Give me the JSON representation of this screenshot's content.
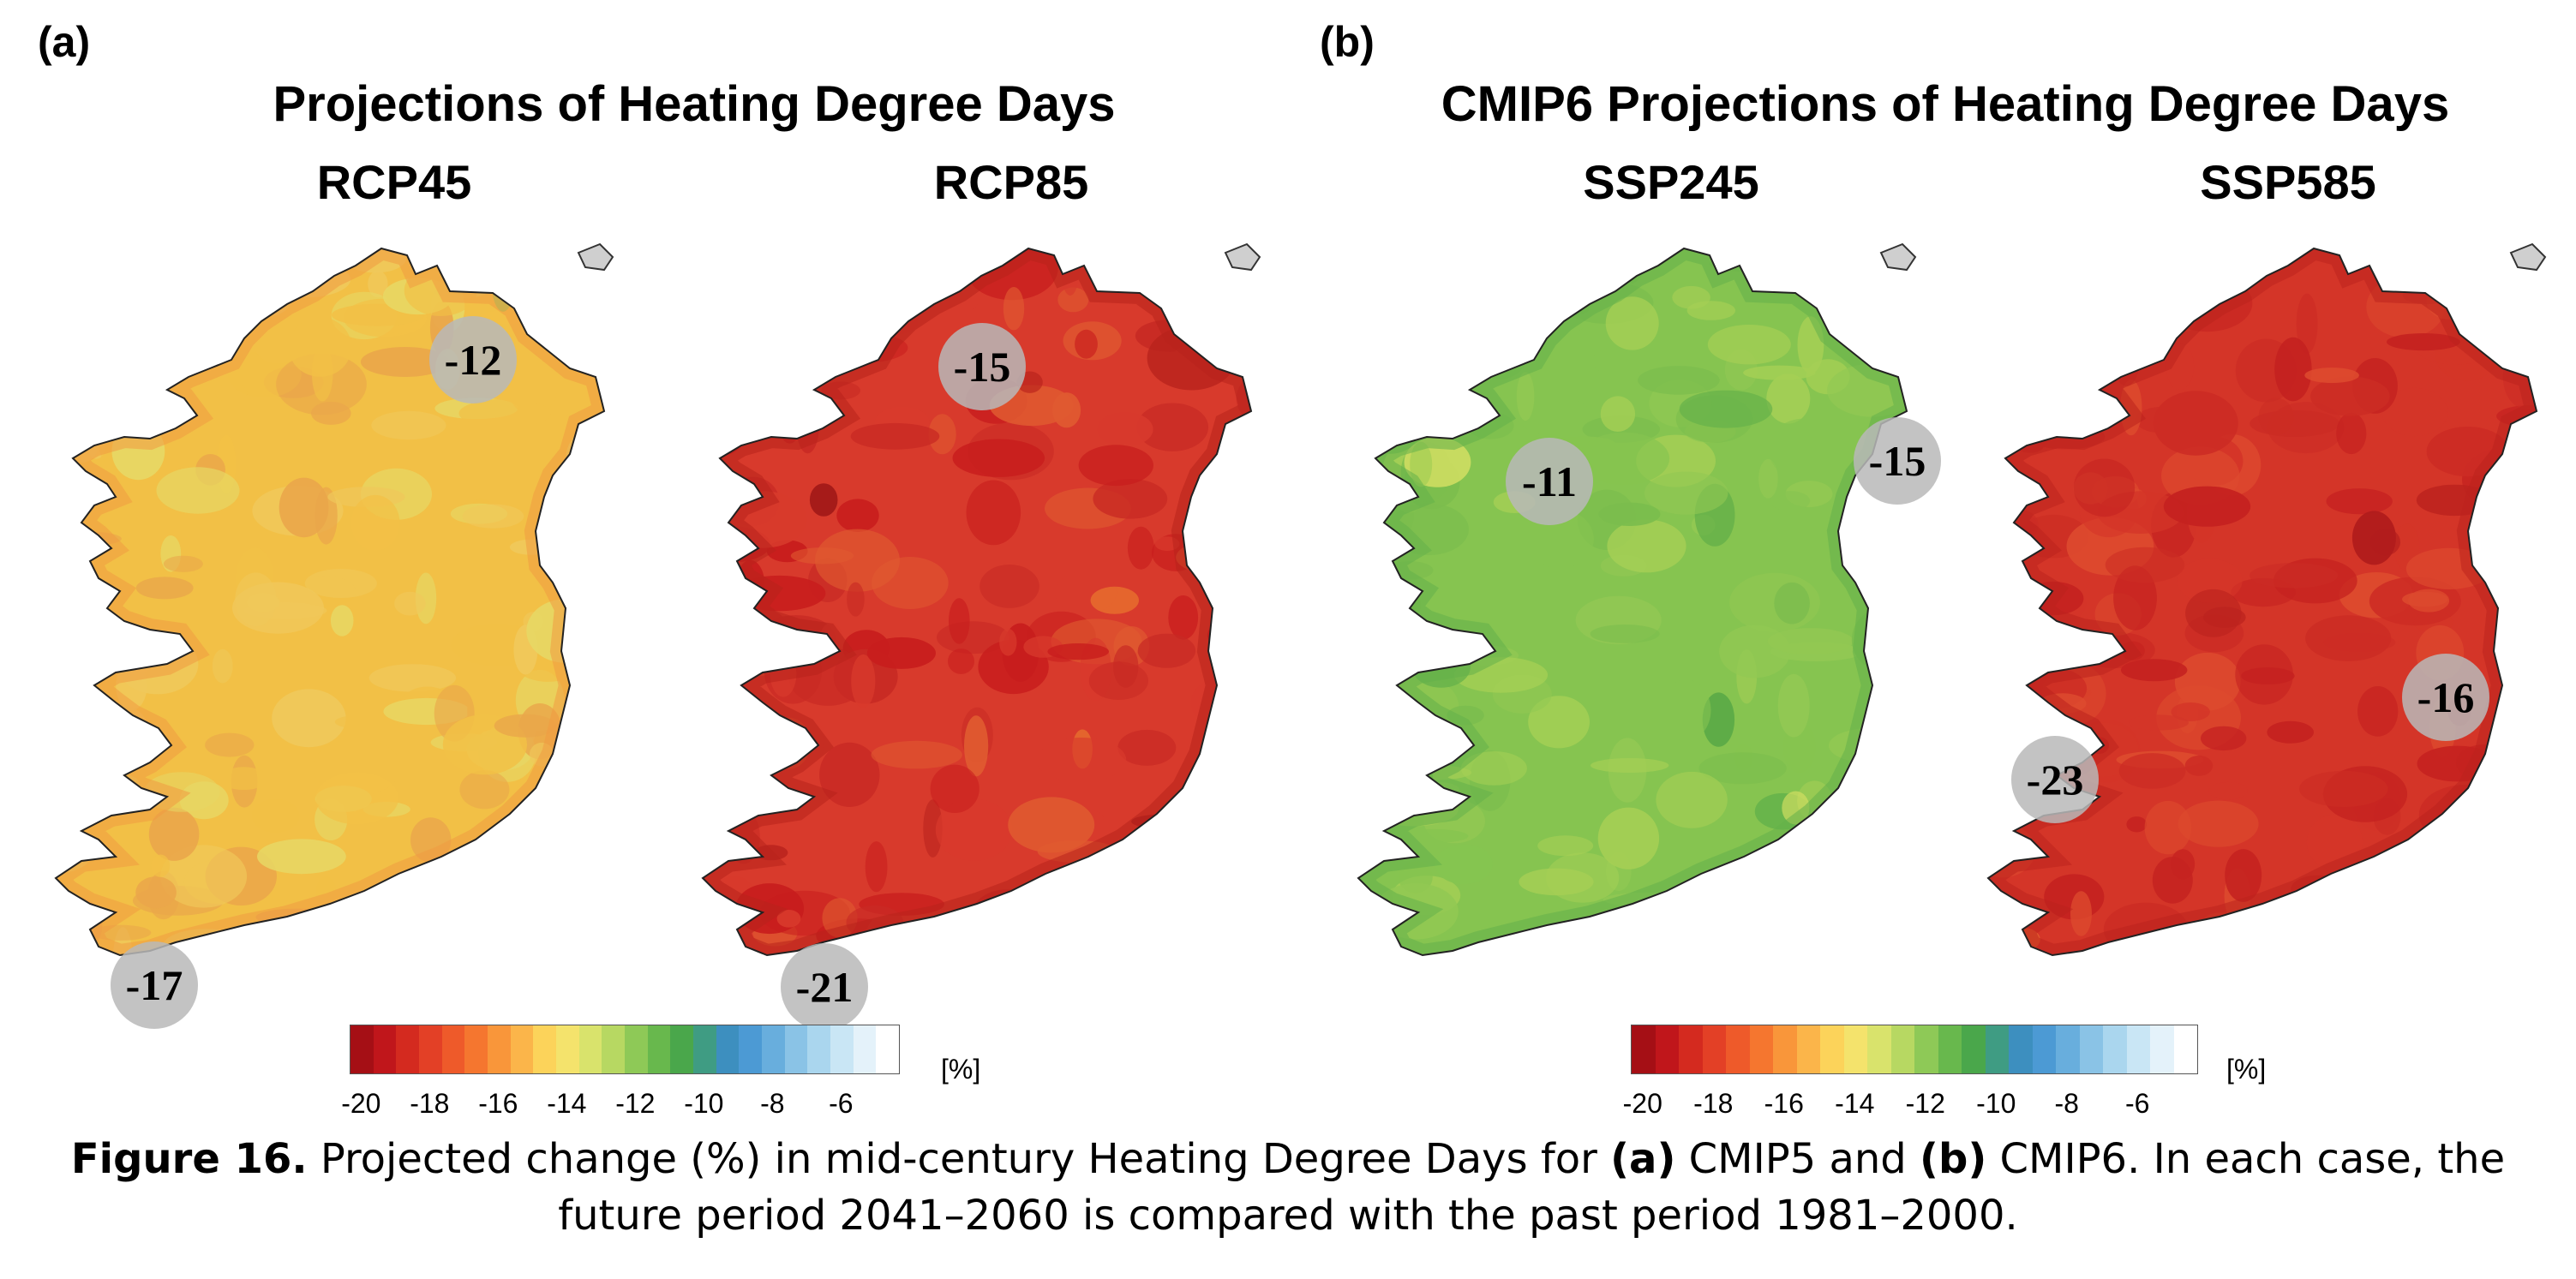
{
  "panels": {
    "a": {
      "label": "(a)",
      "title": "Projections of Heating Degree Days",
      "maps": [
        {
          "scenario": "RCP45",
          "palette": [
            "#f2c046",
            "#f0c85a",
            "#eaa64a",
            "#e7d764"
          ],
          "accent": [
            "#9ac75a",
            "#b5cf5e",
            "#f09a42"
          ],
          "callouts": [
            "-12",
            "-17"
          ]
        },
        {
          "scenario": "RCP85",
          "palette": [
            "#d83a2c",
            "#c82a24",
            "#e05a30",
            "#c81d1d"
          ],
          "accent": [
            "#a01818",
            "#e9742e",
            "#b8221c"
          ],
          "callouts": [
            "-15",
            "-21"
          ]
        }
      ],
      "colorbar": {
        "ticks": [
          "-20",
          "-18",
          "-16",
          "-14",
          "-12",
          "-10",
          "-8",
          "-6"
        ],
        "unit": "[%]"
      }
    },
    "b": {
      "label": "(b)",
      "title": "CMIP6 Projections of Heating Degree Days",
      "maps": [
        {
          "scenario": "SSP245",
          "palette": [
            "#86c450",
            "#92c853",
            "#7bbd4d",
            "#a5cf55"
          ],
          "accent": [
            "#5aaa46",
            "#d4df63",
            "#64b14a"
          ],
          "callouts": [
            "-11",
            "-15"
          ]
        },
        {
          "scenario": "SSP585",
          "palette": [
            "#d43528",
            "#cc2c24",
            "#dd4a2e",
            "#c52220"
          ],
          "accent": [
            "#b01c1c",
            "#e3602f",
            "#bc231e"
          ],
          "callouts": [
            "-16",
            "-23"
          ]
        }
      ],
      "colorbar": {
        "ticks": [
          "-20",
          "-18",
          "-16",
          "-14",
          "-12",
          "-10",
          "-8",
          "-6"
        ],
        "unit": "[%]"
      }
    }
  },
  "colorscale": [
    "#a50f15",
    "#c0161b",
    "#d42a1f",
    "#e34026",
    "#ee5a2a",
    "#f5762f",
    "#f9963a",
    "#fbb54a",
    "#fcd35a",
    "#f4e36c",
    "#d9e36c",
    "#b7d862",
    "#8ec957",
    "#68b84d",
    "#4aa74b",
    "#3f9c83",
    "#3d8fbf",
    "#4c9ad4",
    "#68aedd",
    "#8ac3e6",
    "#aad6ee",
    "#c9e6f5",
    "#e4f2fa",
    "#ffffff"
  ],
  "caption": {
    "label": "Figure 16.",
    "text1": " Projected change (%) in mid-century Heating Degree Days for ",
    "a": "(a)",
    "text2": " CMIP5 and ",
    "b": "(b)",
    "text3": " CMIP6. In each case, the",
    "line2": "future period 2041–2060 is compared with the past period 1981–2000."
  }
}
